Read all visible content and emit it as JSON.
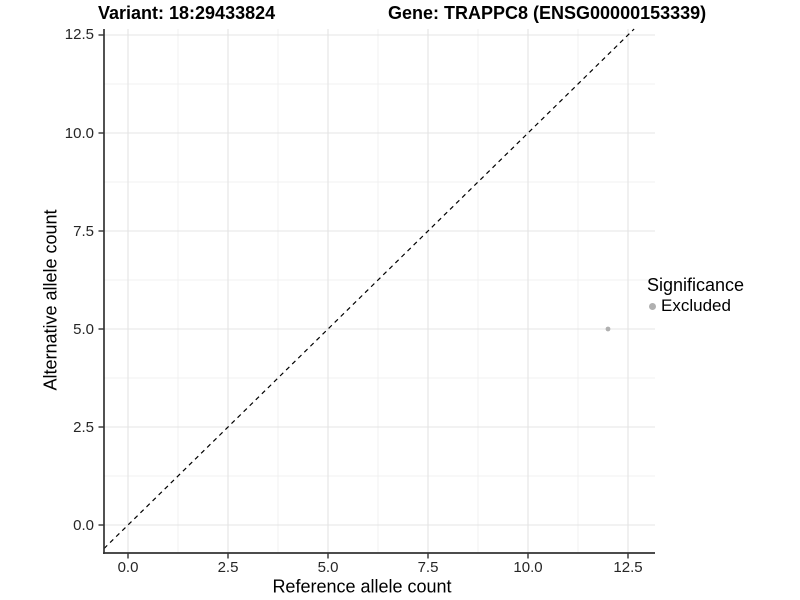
{
  "header": {
    "variant_title": "Variant: 18:29433824",
    "gene_title": "Gene: TRAPPC8 (ENSG00000153339)"
  },
  "chart_data": {
    "type": "scatter",
    "xlabel": "Reference allele count",
    "ylabel": "Alternative allele count",
    "xlim": [
      -0.6,
      13.175
    ],
    "ylim": [
      -0.714,
      12.653
    ],
    "x_ticks": [
      0,
      2.5,
      5,
      7.5,
      10,
      12.5
    ],
    "y_ticks": [
      0,
      2.5,
      5,
      7.5,
      10,
      12.5
    ],
    "x_tick_labels": [
      "0.0",
      "2.5",
      "5.0",
      "7.5",
      "10.0",
      "12.5"
    ],
    "y_tick_labels": [
      "0.0",
      "2.5",
      "5.0",
      "7.5",
      "10.0",
      "12.5"
    ],
    "minor_grid_step": 1.25,
    "grid": {
      "major": true,
      "minor": true
    },
    "identity_line": {
      "equation": "y = x",
      "style": "dashed",
      "color": "#000000"
    },
    "series": [
      {
        "name": "Excluded",
        "color": "#b0b0b0",
        "points": [
          {
            "x": 12,
            "y": 5
          }
        ]
      }
    ],
    "legend": {
      "title": "Significance",
      "position": "right",
      "items": [
        {
          "label": "Excluded",
          "color": "#b0b0b0"
        }
      ]
    }
  },
  "colors": {
    "background": "#ffffff",
    "major_grid": "#e4e4e4",
    "minor_grid": "#f1f1f1",
    "axis_line": "#333333",
    "tick_mark": "#333333",
    "tick_text": "#262626",
    "identity_line": "#000000",
    "point": "#b0b0b0"
  }
}
